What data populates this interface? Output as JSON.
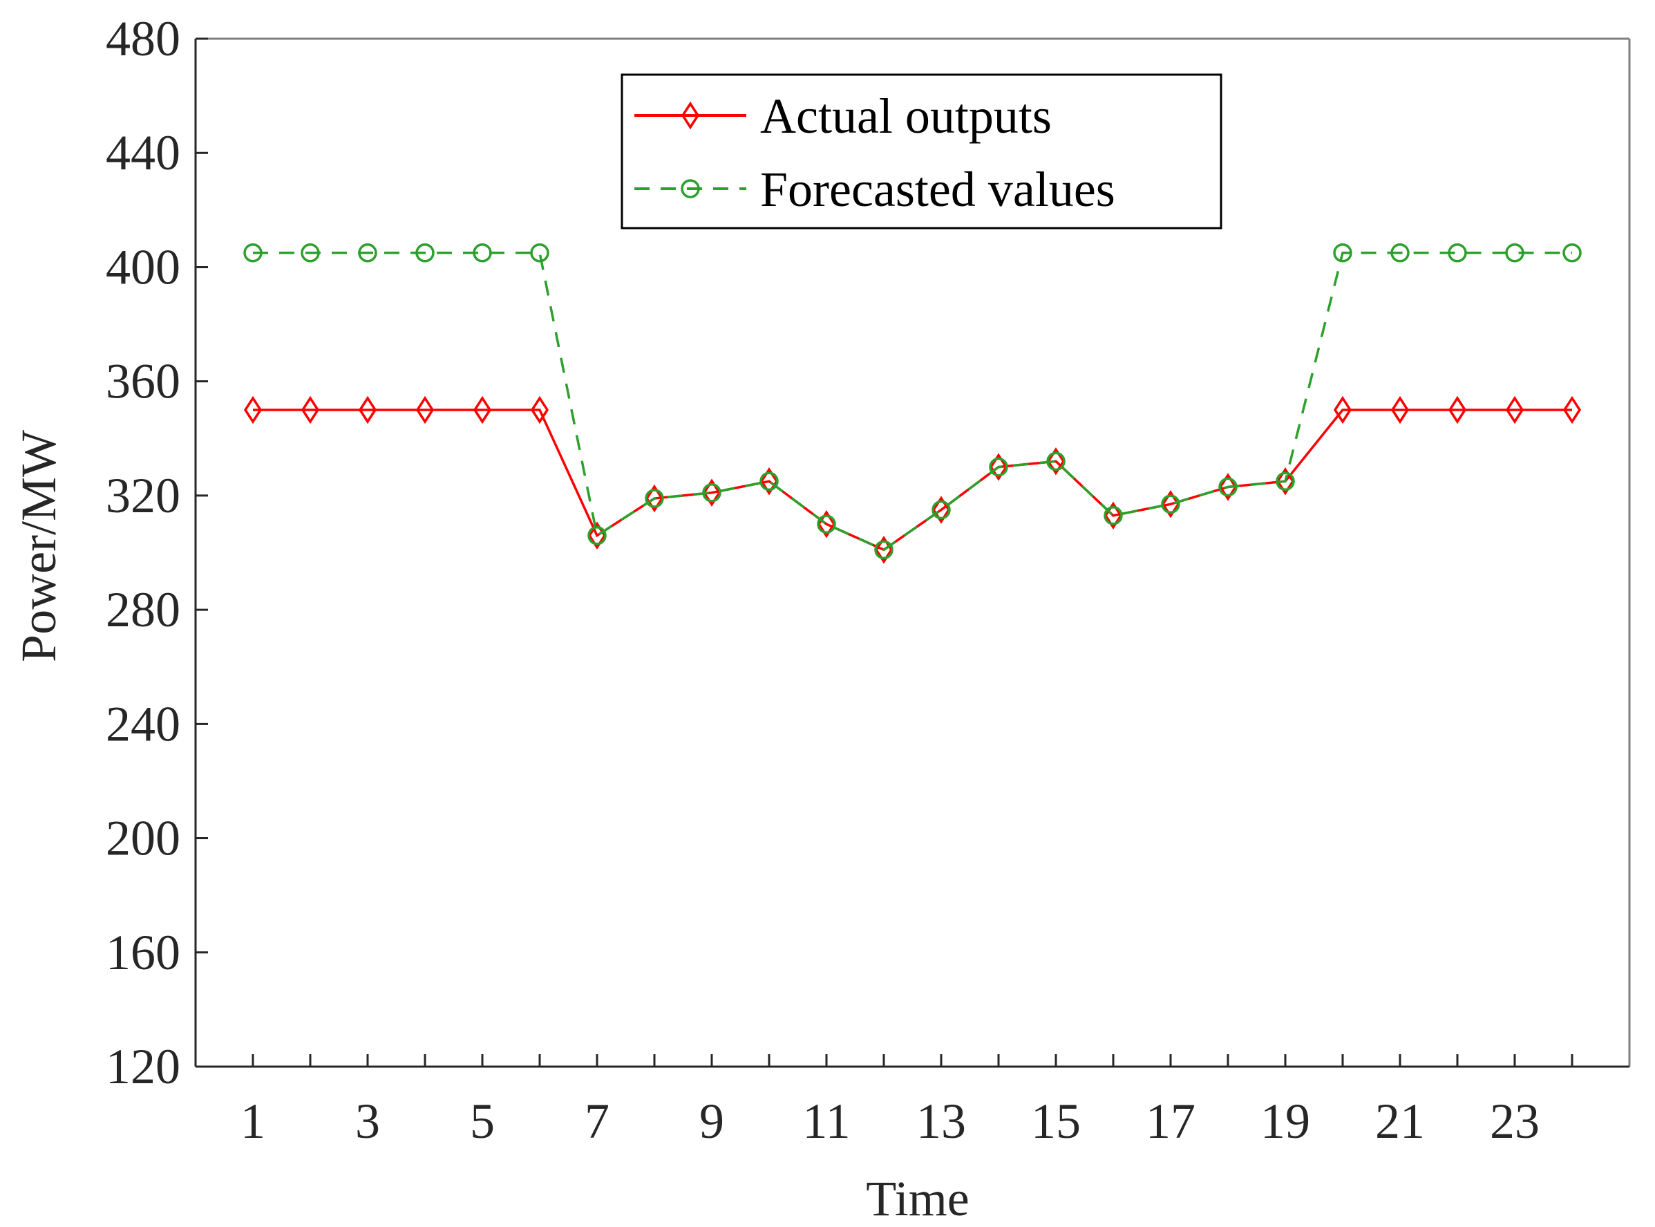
{
  "chart_data": {
    "type": "line",
    "title": "",
    "xlabel": "Time",
    "ylabel": "Power/MW",
    "xlim": [
      0,
      25
    ],
    "ylim": [
      120,
      480
    ],
    "x_ticks": [
      1,
      3,
      5,
      7,
      9,
      11,
      13,
      15,
      17,
      19,
      21,
      23
    ],
    "x_minor_ticks": [
      2,
      4,
      6,
      8,
      10,
      12,
      14,
      16,
      18,
      20,
      22,
      24
    ],
    "y_ticks": [
      120,
      160,
      200,
      240,
      280,
      320,
      360,
      400,
      440,
      480
    ],
    "grid": false,
    "legend_position": "top-center",
    "x": [
      1,
      2,
      3,
      4,
      5,
      6,
      7,
      8,
      9,
      10,
      11,
      12,
      13,
      14,
      15,
      16,
      17,
      18,
      19,
      20,
      21,
      22,
      23,
      24
    ],
    "series": [
      {
        "name": "Actual outputs",
        "color": "#ff0000",
        "line_style": "solid",
        "marker": "diamond",
        "values": [
          350,
          350,
          350,
          350,
          350,
          350,
          306,
          319,
          321,
          325,
          310,
          301,
          315,
          330,
          332,
          313,
          317,
          323,
          325,
          350,
          350,
          350,
          350,
          350
        ]
      },
      {
        "name": "Forecasted values",
        "color": "#2ca02c",
        "line_style": "dashed",
        "marker": "circle",
        "values": [
          405,
          405,
          405,
          405,
          405,
          405,
          306,
          319,
          321,
          325,
          310,
          301,
          315,
          330,
          332,
          313,
          317,
          323,
          325,
          405,
          405,
          405,
          405,
          405
        ]
      }
    ]
  }
}
